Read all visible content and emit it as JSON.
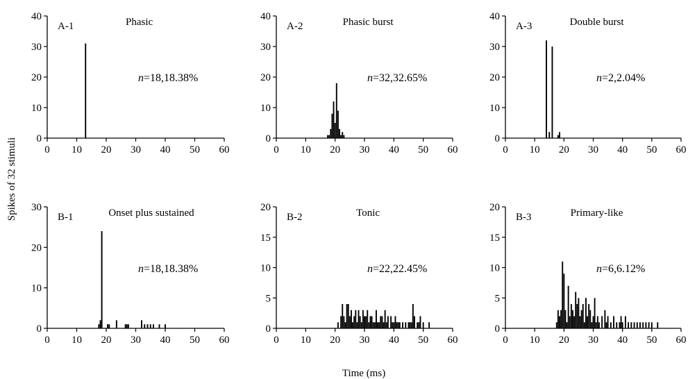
{
  "figure": {
    "ylabel": "Spikes of 32 stimuli",
    "xlabel": "Time (ms)"
  },
  "chart_data": [
    {
      "type": "bar",
      "panel": "A-1",
      "title": "Phasic",
      "n_prefix": "n",
      "n_text": "=18,18.38%",
      "xlim": [
        0,
        60
      ],
      "ylim": [
        0,
        40
      ],
      "xticks": [
        0,
        10,
        20,
        30,
        40,
        50,
        60
      ],
      "yticks": [
        0,
        10,
        20,
        30,
        40
      ],
      "x": [
        13
      ],
      "values": [
        31
      ]
    },
    {
      "type": "bar",
      "panel": "A-2",
      "title": "Phasic burst",
      "n_prefix": "n",
      "n_text": "=32,32.65%",
      "xlim": [
        0,
        60
      ],
      "ylim": [
        0,
        40
      ],
      "xticks": [
        0,
        10,
        20,
        30,
        40,
        50,
        60
      ],
      "yticks": [
        0,
        10,
        20,
        30,
        40
      ],
      "x": [
        17.5,
        18,
        18.5,
        19,
        19.5,
        20,
        20.5,
        21,
        21.5,
        22,
        22.5,
        23
      ],
      "values": [
        1,
        1,
        3,
        8,
        12,
        5,
        18,
        9,
        3,
        1,
        2,
        1
      ]
    },
    {
      "type": "bar",
      "panel": "A-3",
      "title": "Double burst",
      "n_prefix": "n",
      "n_text": "=2,2.04%",
      "xlim": [
        0,
        60
      ],
      "ylim": [
        0,
        40
      ],
      "xticks": [
        0,
        10,
        20,
        30,
        40,
        50,
        60
      ],
      "yticks": [
        0,
        10,
        20,
        30,
        40
      ],
      "x": [
        14,
        15,
        16,
        18,
        18.5
      ],
      "values": [
        32,
        2,
        30,
        1,
        2
      ]
    },
    {
      "type": "bar",
      "panel": "B-1",
      "title": "Onset plus sustained",
      "n_prefix": "n",
      "n_text": "=18,18.38%",
      "xlim": [
        0,
        60
      ],
      "ylim": [
        0,
        30
      ],
      "xticks": [
        0,
        10,
        20,
        30,
        40,
        50,
        60
      ],
      "yticks": [
        0,
        10,
        20,
        30
      ],
      "x": [
        17.5,
        18,
        18.5,
        20.5,
        21,
        23.5,
        26.5,
        27,
        27.5,
        32,
        33,
        34,
        35,
        36,
        38,
        40
      ],
      "values": [
        1,
        2,
        24,
        1,
        1,
        2,
        1,
        1,
        1,
        2,
        1,
        1,
        1,
        1,
        1,
        1
      ]
    },
    {
      "type": "bar",
      "panel": "B-2",
      "title": "Tonic",
      "n_prefix": "n",
      "n_text": "=22,22.45%",
      "xlim": [
        0,
        60
      ],
      "ylim": [
        0,
        20
      ],
      "xticks": [
        0,
        10,
        20,
        30,
        40,
        50,
        60
      ],
      "yticks": [
        0,
        5,
        10,
        15,
        20
      ],
      "x": [
        21,
        22,
        22.5,
        23,
        23.5,
        24,
        24.5,
        25,
        25.5,
        26,
        26.5,
        27,
        27.5,
        28,
        28.5,
        29,
        29.5,
        30,
        30.5,
        31,
        31.5,
        32,
        32.5,
        33,
        33.5,
        34,
        34.5,
        35,
        35.5,
        36,
        36.5,
        37,
        37.5,
        38,
        39,
        39.5,
        40,
        40.5,
        41,
        41.5,
        42,
        43,
        44,
        45,
        45.5,
        46,
        46.5,
        47,
        48,
        48.5,
        49,
        50,
        52
      ],
      "values": [
        1,
        2,
        4,
        2,
        1,
        4,
        4,
        2,
        3,
        1,
        2,
        3,
        1,
        3,
        2,
        1,
        3,
        2,
        2,
        3,
        1,
        2,
        2,
        1,
        1,
        3,
        1,
        1,
        2,
        2,
        1,
        3,
        1,
        2,
        2,
        1,
        1,
        2,
        1,
        1,
        1,
        1,
        1,
        1,
        1,
        1,
        4,
        2,
        1,
        1,
        2,
        1,
        1
      ]
    },
    {
      "type": "bar",
      "panel": "B-3",
      "title": "Primary-like",
      "n_prefix": "n",
      "n_text": "=6,6.12%",
      "xlim": [
        0,
        60
      ],
      "ylim": [
        0,
        20
      ],
      "xticks": [
        0,
        10,
        20,
        30,
        40,
        50,
        60
      ],
      "yticks": [
        0,
        5,
        10,
        15,
        20
      ],
      "x": [
        17.5,
        18,
        18.5,
        19,
        19.5,
        20,
        20.5,
        21,
        21.5,
        22,
        22.5,
        23,
        23.5,
        24,
        24.5,
        25,
        25.5,
        26,
        26.5,
        27,
        27.5,
        28,
        28.5,
        29,
        29.5,
        30,
        30.5,
        31,
        31.5,
        32,
        33,
        34,
        34.5,
        35,
        36,
        37,
        38,
        39,
        39.5,
        40,
        41,
        42,
        43,
        44,
        45,
        46,
        47,
        48,
        49,
        50,
        52
      ],
      "values": [
        1,
        3,
        2,
        3,
        11,
        9,
        3,
        1,
        7,
        2,
        4,
        3,
        2,
        6,
        4,
        5,
        2,
        3,
        4,
        1,
        5,
        2,
        4,
        3,
        1,
        2,
        5,
        1,
        2,
        1,
        2,
        3,
        1,
        2,
        1,
        2,
        1,
        1,
        2,
        1,
        2,
        1,
        1,
        1,
        1,
        1,
        1,
        1,
        1,
        1,
        1
      ]
    }
  ]
}
